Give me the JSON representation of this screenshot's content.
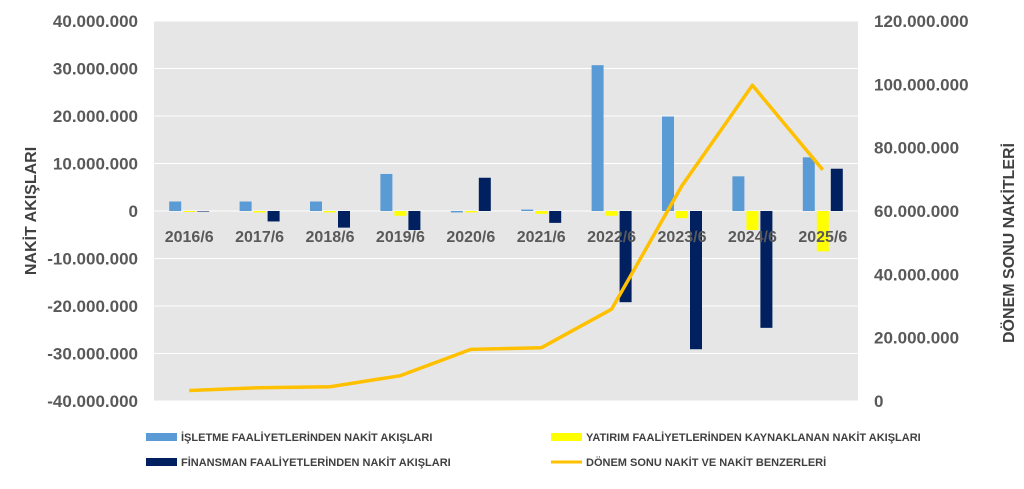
{
  "chart_data": {
    "type": "bar",
    "categories": [
      "2016/6",
      "2017/6",
      "2018/6",
      "2019/6",
      "2020/6",
      "2021/6",
      "2022/6",
      "2023/6",
      "2024/6",
      "2025/6"
    ],
    "series": [
      {
        "name": "İŞLETME FAALİYETLERİNDEN NAKİT AKIŞLARI",
        "axis": "left",
        "chart": "bar",
        "color": "#5b9bd5",
        "values": [
          2000000,
          2000000,
          2000000,
          7800000,
          -300000,
          300000,
          30700000,
          19900000,
          7300000,
          11300000
        ]
      },
      {
        "name": "YATIRIM FAALİYETLERİNDEN KAYNAKLANAN NAKİT AKIŞLARI",
        "axis": "left",
        "chart": "bar",
        "color": "#ffff00",
        "values": [
          -200000,
          -300000,
          -300000,
          -1000000,
          -300000,
          -600000,
          -1000000,
          -1500000,
          -4000000,
          -8500000
        ]
      },
      {
        "name": "FİNANSMAN FAALİYETLERİNDEN NAKİT AKIŞLARI",
        "axis": "left",
        "chart": "bar",
        "color": "#002060",
        "values": [
          0,
          -2200000,
          -3500000,
          -4000000,
          7000000,
          -2500000,
          -19200000,
          -29100000,
          -24600000,
          8900000
        ]
      },
      {
        "name": "DÖNEM SONU NAKİT VE NAKİT BENZERLERİ",
        "axis": "right",
        "chart": "line",
        "color": "#ffc000",
        "values": [
          3300000,
          4200000,
          4500000,
          8000000,
          16300000,
          16800000,
          29000000,
          68000000,
          99700000,
          73000000
        ]
      }
    ],
    "ylabel": "NAKİT AKIŞLARI",
    "y2label": "DÖNEM SONU NAKİTLERİ",
    "ylim": [
      -40000000,
      40000000
    ],
    "y2lim": [
      0,
      120000000
    ],
    "yticks": [
      "40.000.000",
      "30.000.000",
      "20.000.000",
      "10.000.000",
      "0",
      "-10.000.000",
      "-20.000.000",
      "-30.000.000",
      "-40.000.000"
    ],
    "y2ticks": [
      "120.000.000",
      "100.000.000",
      "80.000.000",
      "60.000.000",
      "40.000.000",
      "20.000.000",
      "0"
    ],
    "grid": true,
    "legend": "bottom"
  },
  "colors": {
    "plot_background": "#e7e6e6",
    "gridline": "#ffffff"
  }
}
